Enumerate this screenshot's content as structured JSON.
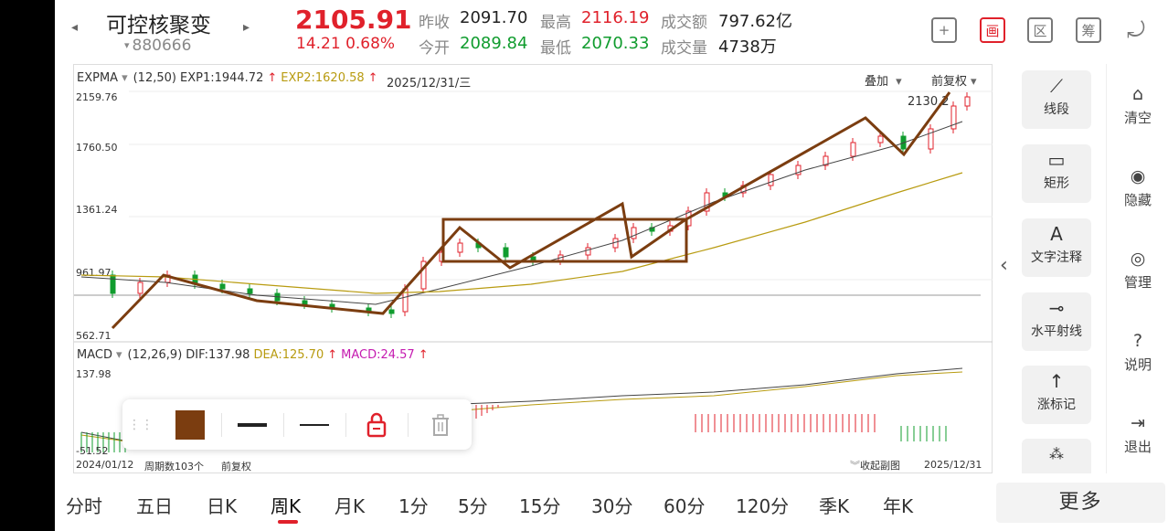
{
  "header": {
    "prev_arrow": "◂",
    "next_arrow": "▸",
    "name": "可控核聚变",
    "code_marker": "▾",
    "code": "880666",
    "price": "2105.91",
    "change": "14.21",
    "change_pct": "0.68%",
    "prev_close_label": "昨收",
    "prev_close": "2091.70",
    "open_label": "今开",
    "open": "2089.84",
    "high_label": "最高",
    "high": "2116.19",
    "low_label": "最低",
    "low": "2070.33",
    "turnover_label": "成交额",
    "turnover": "797.62亿",
    "volume_label": "成交量",
    "volume": "4738万",
    "buttons": [
      {
        "icon": "plus-icon",
        "glyph": "+"
      },
      {
        "icon": "draw-icon",
        "glyph": "画"
      },
      {
        "icon": "range-icon",
        "glyph": "区"
      },
      {
        "icon": "filter-icon",
        "glyph": "筹"
      },
      {
        "icon": "rotate-icon",
        "glyph": "⤾"
      }
    ]
  },
  "main_chart": {
    "indicator": "EXPMA",
    "params": "(12,50)",
    "exp1": "EXP1:1944.72",
    "exp2": "EXP2:1620.58",
    "date": "2025/12/31/三",
    "overlay_label": "叠加",
    "adjust_label": "前复权",
    "y_labels": [
      "2159.76",
      "1760.50",
      "1361.24",
      "961.97",
      "562.71"
    ],
    "last_price_tag": "2130.2"
  },
  "macd": {
    "indicator": "MACD",
    "params": "(12,26,9)",
    "dif": "DIF:137.98",
    "dea": "DEA:125.70",
    "macd": "MACD:24.57",
    "y_top": "137.98",
    "y_bottom": "-51.52"
  },
  "footer_bar": {
    "start_date": "2024/01/12",
    "period_count": "周期数103个",
    "adjust": "前复权",
    "collapse": "收起副图",
    "end_date": "2025/12/31"
  },
  "draw_toolbar": {
    "color": "#7b3d10"
  },
  "tools": [
    {
      "icon": "segment-icon",
      "glyph": "⟋",
      "label": "线段"
    },
    {
      "icon": "rectangle-icon",
      "glyph": "▭",
      "label": "矩形"
    },
    {
      "icon": "text-icon",
      "glyph": "A",
      "label": "文字注释"
    },
    {
      "icon": "ray-icon",
      "glyph": "⊸",
      "label": "水平射线"
    },
    {
      "icon": "up-arrow-icon",
      "glyph": "↑",
      "label": "涨标记"
    }
  ],
  "side_actions": [
    {
      "icon": "clear-icon",
      "glyph": "⌂",
      "label": "清空"
    },
    {
      "icon": "hide-icon",
      "glyph": "◉",
      "label": "隐藏"
    },
    {
      "icon": "manage-icon",
      "glyph": "◎",
      "label": "管理"
    },
    {
      "icon": "help-icon",
      "glyph": "?",
      "label": "说明"
    },
    {
      "icon": "exit-icon",
      "glyph": "⇥",
      "label": "退出"
    }
  ],
  "collapse_arrow": "‹",
  "periods": [
    "分时",
    "五日",
    "日K",
    "周K",
    "月K",
    "1分",
    "5分",
    "15分",
    "30分",
    "60分",
    "120分",
    "季K",
    "年K"
  ],
  "active_period": "周K",
  "more_label": "更多"
}
